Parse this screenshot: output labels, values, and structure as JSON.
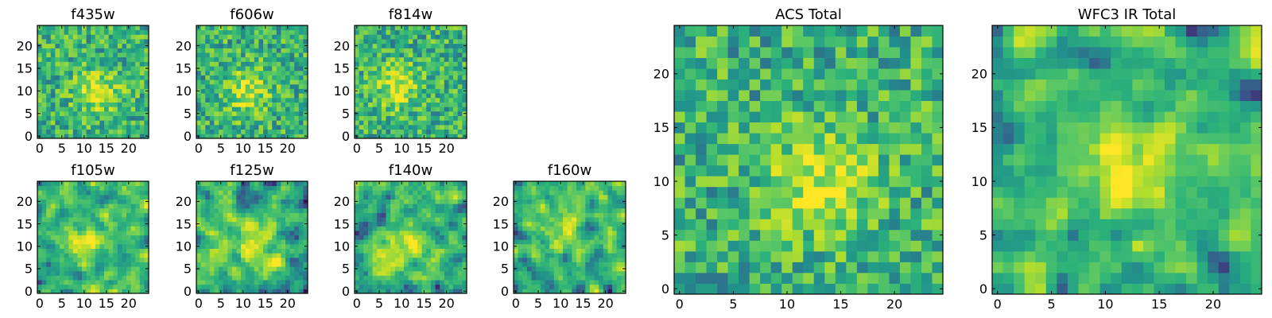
{
  "colormap": {
    "name": "viridis",
    "stops": [
      "#440154",
      "#3b528b",
      "#21918c",
      "#2cb27a",
      "#5ec962",
      "#b5de2b",
      "#fde725"
    ]
  },
  "chart_data": [
    {
      "type": "heatmap",
      "title": "f435w",
      "grid": [
        25,
        25
      ],
      "xlim": [
        0,
        24
      ],
      "ylim": [
        0,
        24
      ],
      "xticks": [
        0,
        5,
        10,
        15,
        20
      ],
      "yticks": [
        0,
        5,
        10,
        15,
        20
      ],
      "peak": [
        13,
        10
      ],
      "texture": "noisy",
      "seed": 11
    },
    {
      "type": "heatmap",
      "title": "f606w",
      "grid": [
        25,
        25
      ],
      "xlim": [
        0,
        24
      ],
      "ylim": [
        0,
        24
      ],
      "xticks": [
        0,
        5,
        10,
        15,
        20
      ],
      "yticks": [
        0,
        5,
        10,
        15,
        20
      ],
      "peak": [
        11,
        10
      ],
      "texture": "noisy",
      "seed": 23
    },
    {
      "type": "heatmap",
      "title": "f814w",
      "grid": [
        25,
        25
      ],
      "xlim": [
        0,
        24
      ],
      "ylim": [
        0,
        24
      ],
      "xticks": [
        0,
        5,
        10,
        15,
        20
      ],
      "yticks": [
        0,
        5,
        10,
        15,
        20
      ],
      "peak": [
        9,
        11
      ],
      "texture": "noisy",
      "seed": 37
    },
    {
      "type": "heatmap",
      "title": "f105w",
      "grid": [
        25,
        25
      ],
      "xlim": [
        0,
        24
      ],
      "ylim": [
        0,
        24
      ],
      "xticks": [
        0,
        5,
        10,
        15,
        20
      ],
      "yticks": [
        0,
        5,
        10,
        15,
        20
      ],
      "peak": [
        11,
        11
      ],
      "texture": "smooth",
      "seed": 41
    },
    {
      "type": "heatmap",
      "title": "f125w",
      "grid": [
        25,
        25
      ],
      "xlim": [
        0,
        24
      ],
      "ylim": [
        0,
        24
      ],
      "xticks": [
        0,
        5,
        10,
        15,
        20
      ],
      "yticks": [
        0,
        5,
        10,
        15,
        20
      ],
      "peak": [
        13,
        10
      ],
      "texture": "smooth",
      "seed": 53
    },
    {
      "type": "heatmap",
      "title": "f140w",
      "grid": [
        25,
        25
      ],
      "xlim": [
        0,
        24
      ],
      "ylim": [
        0,
        24
      ],
      "xticks": [
        0,
        5,
        10,
        15,
        20
      ],
      "yticks": [
        0,
        5,
        10,
        15,
        20
      ],
      "peak": [
        10,
        10
      ],
      "texture": "smooth",
      "seed": 67
    },
    {
      "type": "heatmap",
      "title": "f160w",
      "grid": [
        25,
        25
      ],
      "xlim": [
        0,
        24
      ],
      "ylim": [
        0,
        24
      ],
      "xticks": [
        0,
        5,
        10,
        15,
        20
      ],
      "yticks": [
        0,
        5,
        10,
        15,
        20
      ],
      "peak": [
        10,
        14
      ],
      "texture": "smooth",
      "seed": 79
    },
    {
      "type": "heatmap",
      "title": "ACS Total",
      "grid": [
        25,
        25
      ],
      "xlim": [
        0,
        24
      ],
      "ylim": [
        0,
        24
      ],
      "xticks": [
        0,
        5,
        10,
        15,
        20
      ],
      "yticks": [
        0,
        5,
        10,
        15,
        20
      ],
      "peak": [
        13,
        10
      ],
      "texture": "noisy",
      "seed": 97
    },
    {
      "type": "heatmap",
      "title": "WFC3 IR Total",
      "grid": [
        25,
        25
      ],
      "xlim": [
        0,
        24
      ],
      "ylim": [
        0,
        24
      ],
      "xticks": [
        0,
        5,
        10,
        15,
        20
      ],
      "yticks": [
        0,
        5,
        10,
        15,
        20
      ],
      "peak": [
        12,
        11
      ],
      "texture": "smooth",
      "seed": 113
    }
  ]
}
